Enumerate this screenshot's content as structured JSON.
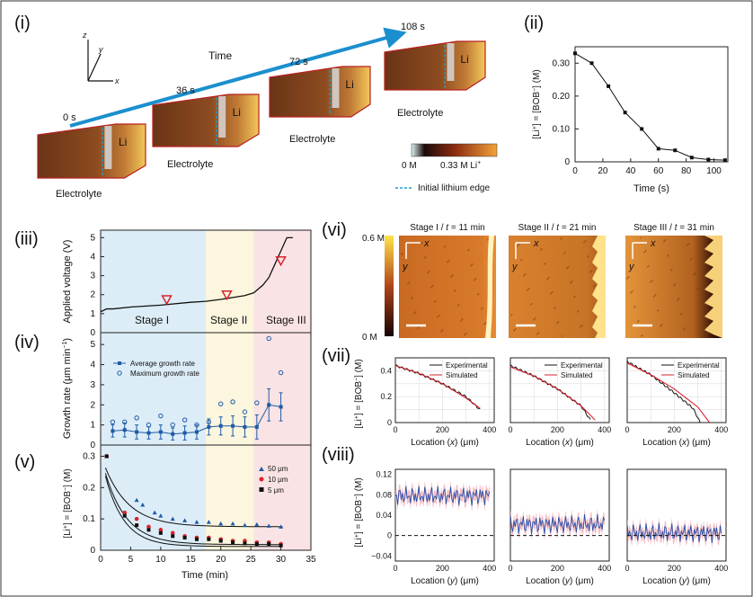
{
  "colors": {
    "axis": "#222222",
    "sim": "#d9232d",
    "exp": "#111111",
    "blue": "#1f5aa6",
    "arrow": "#1b8fce",
    "dash": "#1f9fd0",
    "stageI": "#dcedf7",
    "stageII": "#fbf6dd",
    "stageIII": "#f9e3e5",
    "band": "#f2a9b2"
  },
  "panel_i": {
    "label": "(i)",
    "axes": {
      "x": "x",
      "y": "y",
      "z": "z"
    },
    "time_label": "Time",
    "times": [
      "0 s",
      "36 s",
      "72 s",
      "108 s"
    ],
    "electrolyte": "Electrolyte",
    "li": "Li",
    "colorbar": {
      "min": "0 M",
      "max": "0.33 M Li",
      "sup": "+"
    },
    "legend_dash": "Initial lithium edge"
  },
  "panel_ii": {
    "label": "(ii)",
    "ylabel_a": "[Li",
    "ylabel_b": "+",
    "ylabel_c": "] = [BOB",
    "ylabel_d": "−",
    "ylabel_e": "] (M)",
    "xlabel": "Time (s)",
    "xticks": [
      "0",
      "20",
      "40",
      "60",
      "80",
      "100"
    ],
    "yticks": [
      "0",
      "0.10",
      "0.20",
      "0.30"
    ]
  },
  "panel_iii": {
    "label": "(iii)",
    "ylabel": "Applied voltage (V)",
    "yticks": [
      "0",
      "1",
      "2",
      "3",
      "4",
      "5"
    ],
    "stages": [
      "Stage I",
      "Stage II",
      "Stage III"
    ]
  },
  "panel_iv": {
    "label": "(iv)",
    "ylabel": "Growth rate (μm min",
    "ylabel_sup": "−1",
    "ylabel_end": ")",
    "yticks": [
      "0",
      "1",
      "2",
      "3",
      "4",
      "5"
    ],
    "legend": [
      "Average growth rate",
      "Maximum growth rate"
    ]
  },
  "panel_v": {
    "label": "(v)",
    "ylabel_a": "[Li",
    "ylabel_b": "+",
    "ylabel_c": "] = [BOB",
    "ylabel_d": "−",
    "ylabel_e": "] (M)",
    "xlabel": "Time (min)",
    "xticks": [
      "0",
      "5",
      "10",
      "15",
      "20",
      "25",
      "30",
      "35"
    ],
    "yticks": [
      "0",
      "0.1",
      "0.2",
      "0.3"
    ],
    "legend": [
      "50 μm",
      "10 μm",
      "5 μm"
    ]
  },
  "panel_vi": {
    "label": "(vi)",
    "titles": [
      "Stage I / ",
      "Stage II / ",
      "Stage III / "
    ],
    "t_var": "t",
    "t_vals": [
      " = 11 min",
      " = 21 min",
      " = 31 min"
    ],
    "cbar_max": "0.6 M",
    "cbar_min": "0 M",
    "ax_x": "x",
    "ax_y": "y"
  },
  "panel_vii": {
    "label": "(vii)",
    "legend": [
      "Experimental",
      "Simulated"
    ],
    "xlabel": "Location (",
    "xvar": "x",
    "xunit": ") (μm)",
    "xticks": [
      "0",
      "200",
      "400"
    ],
    "yticks": [
      "0",
      "0.2",
      "0.4"
    ]
  },
  "panel_viii": {
    "label": "(viii)",
    "xlabel": "Location (",
    "yvar": "y",
    "xunit": ") (μm)",
    "xticks": [
      "0",
      "200",
      "400"
    ],
    "yticks": [
      "−0.04",
      "0",
      "0.04",
      "0.08",
      "0.12"
    ]
  },
  "chart_data": [
    {
      "panel": "ii",
      "type": "line",
      "x": [
        0,
        12,
        24,
        36,
        48,
        60,
        72,
        84,
        96,
        108
      ],
      "y": [
        0.33,
        0.3,
        0.23,
        0.15,
        0.1,
        0.04,
        0.035,
        0.013,
        0.007,
        0.005
      ],
      "xlim": [
        0,
        110
      ],
      "ylim": [
        0,
        0.35
      ]
    },
    {
      "panel": "iii",
      "type": "line",
      "x": [
        0,
        1,
        2,
        5,
        10,
        15,
        17.5,
        20,
        22,
        24,
        25.5,
        27,
        28,
        29,
        30,
        31,
        32
      ],
      "y": [
        1.1,
        1.25,
        1.25,
        1.35,
        1.45,
        1.6,
        1.65,
        1.75,
        1.85,
        1.95,
        2.1,
        2.5,
        2.9,
        3.6,
        4.3,
        5.0,
        5.0
      ],
      "markers_x": [
        11,
        21,
        30
      ],
      "markers_y": [
        1.75,
        2.0,
        3.8
      ],
      "xlim": [
        0,
        35
      ],
      "ylim": [
        0,
        5.3
      ]
    },
    {
      "panel": "iv",
      "type": "scatter",
      "x": [
        2,
        4,
        6,
        8,
        10,
        12,
        14,
        16,
        18,
        20,
        22,
        24,
        26,
        28,
        30
      ],
      "avg": [
        0.7,
        0.75,
        0.65,
        0.6,
        0.65,
        0.55,
        0.6,
        0.65,
        0.9,
        0.95,
        0.95,
        0.9,
        0.9,
        2.0,
        1.9
      ],
      "err": [
        0.3,
        0.35,
        0.35,
        0.3,
        0.35,
        0.3,
        0.35,
        0.35,
        0.4,
        0.45,
        0.5,
        0.5,
        0.6,
        0.8,
        0.7
      ],
      "max": [
        1.15,
        1.15,
        1.35,
        1.0,
        1.45,
        1.0,
        1.25,
        1.0,
        1.15,
        2.05,
        2.15,
        1.65,
        2.1,
        5.3,
        3.6
      ],
      "xlim": [
        0,
        35
      ],
      "ylim": [
        0,
        5.5
      ]
    },
    {
      "panel": "v",
      "type": "scatter",
      "series": [
        {
          "name": "50 μm",
          "x": [
            1,
            6,
            7,
            9,
            10,
            12,
            14,
            16,
            18,
            20,
            22,
            24,
            26,
            28,
            30
          ],
          "y": [
            0.3,
            0.16,
            0.145,
            0.12,
            0.11,
            0.1,
            0.095,
            0.09,
            0.09,
            0.085,
            0.085,
            0.08,
            0.082,
            0.078,
            0.075
          ]
        },
        {
          "name": "10 μm",
          "x": [
            1,
            4,
            6,
            8,
            10,
            12,
            14,
            16,
            18,
            20,
            22,
            24,
            26,
            28,
            30
          ],
          "y": [
            0.3,
            0.12,
            0.1,
            0.075,
            0.065,
            0.055,
            0.045,
            0.04,
            0.04,
            0.035,
            0.03,
            0.03,
            0.025,
            0.025,
            0.02
          ]
        },
        {
          "name": "5 μm",
          "x": [
            1,
            4,
            6,
            8,
            10,
            12,
            14,
            16,
            18,
            20,
            22,
            24,
            26,
            28,
            30
          ],
          "y": [
            0.3,
            0.11,
            0.08,
            0.065,
            0.055,
            0.045,
            0.04,
            0.035,
            0.035,
            0.03,
            0.025,
            0.022,
            0.02,
            0.02,
            0.015
          ]
        }
      ],
      "xlim": [
        0,
        35
      ],
      "ylim": [
        0,
        0.33
      ]
    },
    {
      "panel": "vii",
      "type": "line",
      "xlim": [
        0,
        420
      ],
      "ylim": [
        0,
        0.5
      ],
      "profiles": [
        {
          "x_exp": [
            0,
            100,
            200,
            300,
            360
          ],
          "y_exp": [
            0.44,
            0.38,
            0.3,
            0.2,
            0.1
          ],
          "x_sim": [
            0,
            100,
            200,
            300,
            360
          ],
          "y_sim": [
            0.44,
            0.38,
            0.3,
            0.19,
            0.11
          ]
        },
        {
          "x_exp": [
            0,
            100,
            200,
            300,
            340
          ],
          "y_exp": [
            0.44,
            0.36,
            0.26,
            0.13,
            0.02
          ],
          "x_sim": [
            0,
            100,
            200,
            300,
            360
          ],
          "y_sim": [
            0.43,
            0.36,
            0.26,
            0.13,
            0.02
          ]
        },
        {
          "x_exp": [
            0,
            100,
            200,
            280,
            310
          ],
          "y_exp": [
            0.47,
            0.37,
            0.23,
            0.11,
            0.0
          ],
          "x_sim": [
            0,
            100,
            200,
            300,
            350
          ],
          "y_sim": [
            0.46,
            0.37,
            0.26,
            0.12,
            0.0
          ]
        }
      ]
    },
    {
      "panel": "viii",
      "type": "line",
      "xlim": [
        0,
        420
      ],
      "ylim": [
        -0.05,
        0.13
      ],
      "means": [
        0.078,
        0.022,
        0.005
      ]
    }
  ]
}
